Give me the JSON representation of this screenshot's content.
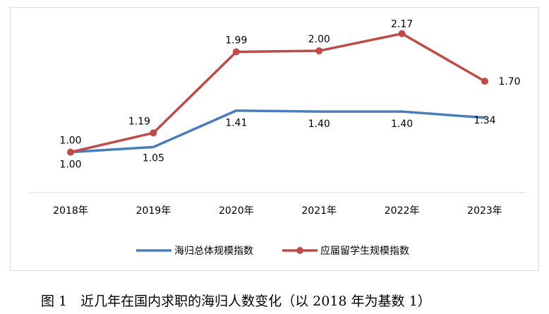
{
  "chart_data": {
    "type": "line",
    "categories": [
      "2018年",
      "2019年",
      "2020年",
      "2021年",
      "2022年",
      "2023年"
    ],
    "series": [
      {
        "name": "海归总体规模指数",
        "values": [
          1.0,
          1.05,
          1.41,
          1.4,
          1.4,
          1.34
        ],
        "labels": [
          "1.00",
          "1.05",
          "1.41",
          "1.40",
          "1.40",
          "1.34"
        ],
        "color": "#4a7ebb"
      },
      {
        "name": "应届留学生规模指数",
        "values": [
          1.0,
          1.19,
          1.99,
          2.0,
          2.17,
          1.7
        ],
        "labels": [
          "1.00",
          "1.19",
          "1.99",
          "2.00",
          "2.17",
          "1.70"
        ],
        "color": "#be4b48"
      }
    ],
    "ylim": [
      0.6,
      2.3
    ],
    "grid": false,
    "legend_position": "bottom"
  },
  "caption": "图 1　近几年在国内求职的海归人数变化（以 2018 年为基数 1）"
}
